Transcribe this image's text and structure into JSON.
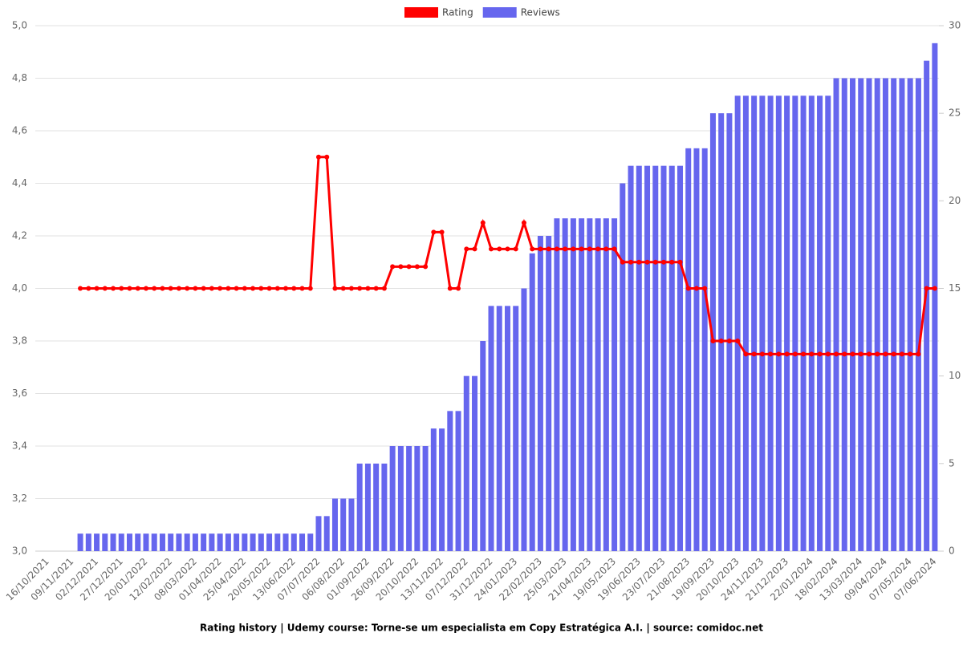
{
  "chart_data": {
    "type": "bar-line",
    "title": "Rating history | Udemy course: Torne-se um especialista em Copy Estratégica A.I. | source: comidoc.net",
    "categories": [
      "16/10/2021",
      null,
      null,
      "09/11/2021",
      null,
      null,
      "02/12/2021",
      null,
      null,
      "27/12/2021",
      null,
      null,
      "20/01/2022",
      null,
      null,
      "12/02/2022",
      null,
      null,
      "08/03/2022",
      null,
      null,
      "01/04/2022",
      null,
      null,
      "25/04/2022",
      null,
      null,
      "20/05/2022",
      null,
      null,
      "13/06/2022",
      null,
      null,
      "07/07/2022",
      null,
      null,
      "06/08/2022",
      null,
      null,
      "01/09/2022",
      null,
      null,
      "26/09/2022",
      null,
      null,
      "20/10/2022",
      null,
      null,
      "13/11/2022",
      null,
      null,
      "07/12/2022",
      null,
      null,
      "31/12/2022",
      null,
      null,
      "24/01/2023",
      null,
      null,
      "22/02/2023",
      null,
      null,
      "25/03/2023",
      null,
      null,
      "21/04/2023",
      null,
      null,
      "19/05/2023",
      null,
      null,
      "19/06/2023",
      null,
      null,
      "23/07/2023",
      null,
      null,
      "21/08/2023",
      null,
      null,
      "19/09/2023",
      null,
      null,
      "20/10/2023",
      null,
      null,
      "24/11/2023",
      null,
      null,
      "21/12/2023",
      null,
      null,
      "22/01/2024",
      null,
      null,
      "18/02/2024",
      null,
      null,
      "13/03/2024",
      null,
      null,
      "09/04/2024",
      null,
      null,
      "07/05/2024",
      null,
      null,
      "07/06/2024"
    ],
    "series": [
      {
        "name": "Rating",
        "type": "line",
        "axis": "y",
        "color": "#ff0000",
        "values": [
          null,
          null,
          null,
          null,
          4.0,
          4.0,
          4.0,
          4.0,
          4.0,
          4.0,
          4.0,
          4.0,
          4.0,
          4.0,
          4.0,
          4.0,
          4.0,
          4.0,
          4.0,
          4.0,
          4.0,
          4.0,
          4.0,
          4.0,
          4.0,
          4.0,
          4.0,
          4.0,
          4.0,
          4.0,
          4.0,
          4.0,
          4.0,
          4.5,
          4.5,
          4.0,
          4.0,
          4.0,
          4.0,
          4.0,
          4.0,
          4.0,
          4.083,
          4.083,
          4.083,
          4.083,
          4.083,
          4.214,
          4.214,
          4.0,
          4.0,
          4.15,
          4.15,
          4.25,
          4.15,
          4.15,
          4.15,
          4.15,
          4.25,
          4.15,
          4.15,
          4.15,
          4.15,
          4.15,
          4.15,
          4.15,
          4.15,
          4.15,
          4.15,
          4.15,
          4.1,
          4.1,
          4.1,
          4.1,
          4.1,
          4.1,
          4.1,
          4.1,
          4.0,
          4.0,
          4.0,
          3.8,
          3.8,
          3.8,
          3.8,
          3.75,
          3.75,
          3.75,
          3.75,
          3.75,
          3.75,
          3.75,
          3.75,
          3.75,
          3.75,
          3.75,
          3.75,
          3.75,
          3.75,
          3.75,
          3.75,
          3.75,
          3.75,
          3.75,
          3.75,
          3.75,
          3.75,
          4.0,
          4.0
        ]
      },
      {
        "name": "Reviews",
        "type": "bar",
        "axis": "y2",
        "color": "#6666ee",
        "values": [
          null,
          null,
          null,
          null,
          1,
          1,
          1,
          1,
          1,
          1,
          1,
          1,
          1,
          1,
          1,
          1,
          1,
          1,
          1,
          1,
          1,
          1,
          1,
          1,
          1,
          1,
          1,
          1,
          1,
          1,
          1,
          1,
          1,
          2,
          2,
          3,
          3,
          3,
          5,
          5,
          5,
          5,
          6,
          6,
          6,
          6,
          6,
          7,
          7,
          8,
          8,
          10,
          10,
          12,
          14,
          14,
          14,
          14,
          15,
          17,
          18,
          18,
          19,
          19,
          19,
          19,
          19,
          19,
          19,
          19,
          21,
          22,
          22,
          22,
          22,
          22,
          22,
          22,
          23,
          23,
          23,
          25,
          25,
          25,
          26,
          26,
          26,
          26,
          26,
          26,
          26,
          26,
          26,
          26,
          26,
          26,
          27,
          27,
          27,
          27,
          27,
          27,
          27,
          27,
          27,
          27,
          27,
          28,
          29
        ]
      }
    ],
    "ylim": [
      3.0,
      5.0
    ],
    "yticks": [
      {
        "value": 3.0,
        "label": "3,0"
      },
      {
        "value": 3.2,
        "label": "3,2"
      },
      {
        "value": 3.4,
        "label": "3,4"
      },
      {
        "value": 3.6,
        "label": "3,6"
      },
      {
        "value": 3.8,
        "label": "3,8"
      },
      {
        "value": 4.0,
        "label": "4,0"
      },
      {
        "value": 4.2,
        "label": "4,2"
      },
      {
        "value": 4.4,
        "label": "4,4"
      },
      {
        "value": 4.6,
        "label": "4,6"
      },
      {
        "value": 4.8,
        "label": "4,8"
      },
      {
        "value": 5.0,
        "label": "5,0"
      }
    ],
    "y2lim": [
      0,
      30
    ],
    "y2ticks": [
      0,
      5,
      10,
      15,
      20,
      25,
      30
    ],
    "grid": true,
    "legend": "top"
  }
}
